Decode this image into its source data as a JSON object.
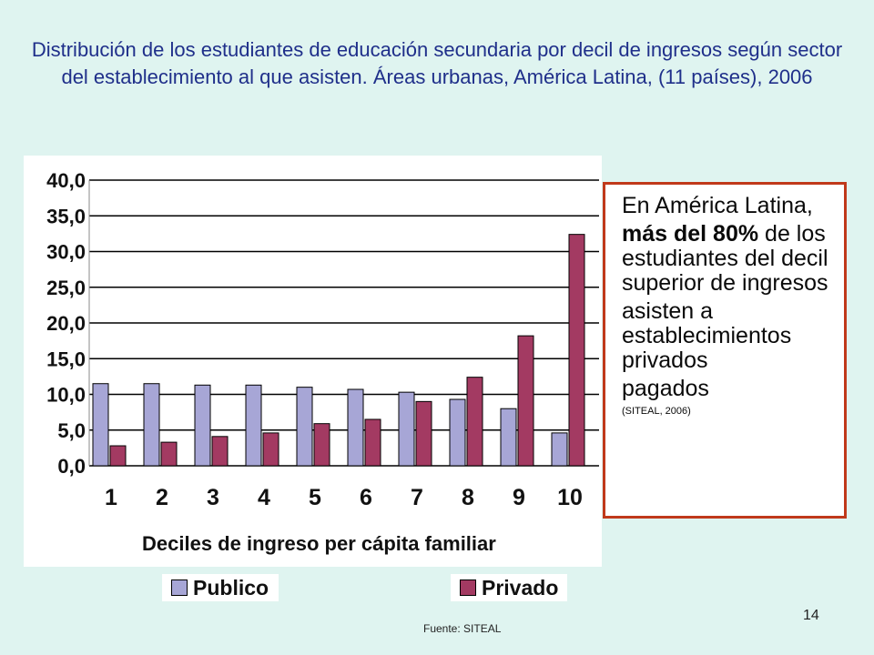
{
  "slide": {
    "title": "Distribución de los estudiantes de educación secundaria por decil de ingresos según sector del establecimiento al que asisten. Áreas urbanas, América Latina, (11 países), 2006",
    "source": "Fuente: SITEAL",
    "page_number": "14"
  },
  "note": {
    "line1": "En América Latina,",
    "bold_part": "más del 80%",
    "line2_rest": " de los estudiantes del decil superior de ingresos",
    "line3": "asisten a establecimientos privados",
    "line4": "pagados",
    "citation": "(SITEAL, 2006)"
  },
  "chart_data": {
    "type": "bar",
    "title": "",
    "xlabel": "Deciles de ingreso per cápita familiar",
    "ylabel": "",
    "categories": [
      "1",
      "2",
      "3",
      "4",
      "5",
      "6",
      "7",
      "8",
      "9",
      "10"
    ],
    "y_ticks": [
      "0,0",
      "5,0",
      "10,0",
      "15,0",
      "20,0",
      "25,0",
      "30,0",
      "35,0",
      "40,0"
    ],
    "ylim": [
      0,
      40
    ],
    "grid": "horizontal",
    "legend_position": "bottom",
    "series": [
      {
        "name": "Publico",
        "color": "#a7a6d6",
        "values": [
          11.5,
          11.5,
          11.3,
          11.3,
          11.0,
          10.7,
          10.3,
          9.3,
          8.0,
          4.6
        ]
      },
      {
        "name": "Privado",
        "color": "#a33a62",
        "values": [
          2.8,
          3.3,
          4.1,
          4.6,
          5.9,
          6.5,
          9.0,
          12.4,
          18.2,
          32.4
        ]
      }
    ]
  }
}
